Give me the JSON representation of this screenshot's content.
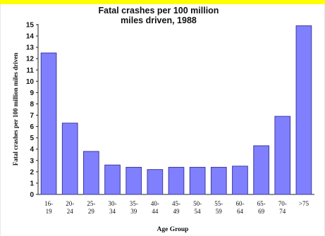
{
  "chart_data": {
    "type": "bar",
    "title_lines": [
      "Fatal crashes per 100 million",
      "miles driven, 1988"
    ],
    "xlabel": "Age Group",
    "ylabel": "Fatal crashes per 100 million miles driven",
    "categories": [
      [
        "16-",
        "19"
      ],
      [
        "20-",
        "24"
      ],
      [
        "25-",
        "29"
      ],
      [
        "30-",
        "34"
      ],
      [
        "35-",
        "39"
      ],
      [
        "40-",
        "44"
      ],
      [
        "45-",
        "49"
      ],
      [
        "50-",
        "54"
      ],
      [
        "55-",
        "59"
      ],
      [
        "60-",
        "64"
      ],
      [
        "65-",
        "69"
      ],
      [
        "70-",
        "74"
      ],
      [
        ">75"
      ]
    ],
    "values": [
      12.5,
      6.3,
      3.8,
      2.6,
      2.4,
      2.2,
      2.4,
      2.4,
      2.4,
      2.5,
      4.3,
      6.9,
      14.9
    ],
    "ylim": [
      0,
      15
    ],
    "yticks": [
      0,
      1,
      2,
      3,
      4,
      5,
      6,
      7,
      8,
      9,
      10,
      11,
      12,
      13,
      14,
      15
    ],
    "bar_color": "#8080ff",
    "bar_edge": "#3a3aa0",
    "grid": false,
    "legend": "none"
  }
}
